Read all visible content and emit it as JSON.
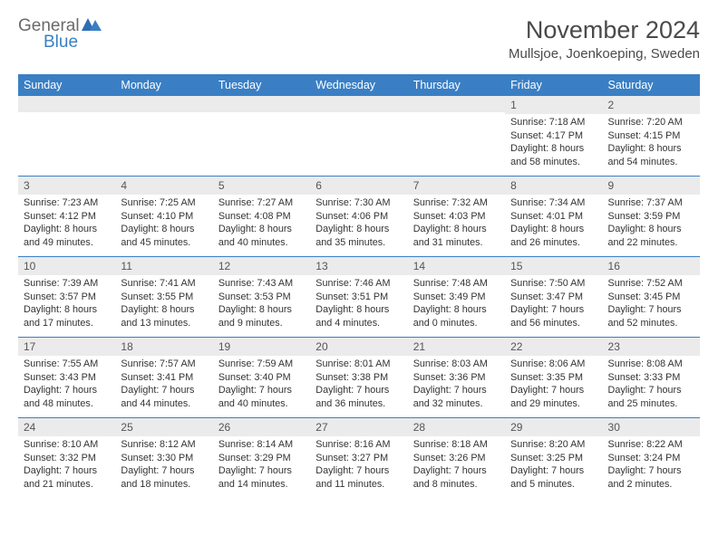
{
  "logo": {
    "text1": "General",
    "text2": "Blue"
  },
  "title": "November 2024",
  "location": "Mullsjoe, Joenkoeping, Sweden",
  "colors": {
    "brand": "#3a7fc4",
    "header_bg": "#3a7fc4",
    "header_text": "#ffffff",
    "daynum_bg": "#ebebeb",
    "border": "#3a7fc4",
    "body_text": "#333333"
  },
  "day_names": [
    "Sunday",
    "Monday",
    "Tuesday",
    "Wednesday",
    "Thursday",
    "Friday",
    "Saturday"
  ],
  "weeks": [
    [
      {
        "n": "",
        "sr": "",
        "ss": "",
        "dl": ""
      },
      {
        "n": "",
        "sr": "",
        "ss": "",
        "dl": ""
      },
      {
        "n": "",
        "sr": "",
        "ss": "",
        "dl": ""
      },
      {
        "n": "",
        "sr": "",
        "ss": "",
        "dl": ""
      },
      {
        "n": "",
        "sr": "",
        "ss": "",
        "dl": ""
      },
      {
        "n": "1",
        "sr": "Sunrise: 7:18 AM",
        "ss": "Sunset: 4:17 PM",
        "dl": "Daylight: 8 hours and 58 minutes."
      },
      {
        "n": "2",
        "sr": "Sunrise: 7:20 AM",
        "ss": "Sunset: 4:15 PM",
        "dl": "Daylight: 8 hours and 54 minutes."
      }
    ],
    [
      {
        "n": "3",
        "sr": "Sunrise: 7:23 AM",
        "ss": "Sunset: 4:12 PM",
        "dl": "Daylight: 8 hours and 49 minutes."
      },
      {
        "n": "4",
        "sr": "Sunrise: 7:25 AM",
        "ss": "Sunset: 4:10 PM",
        "dl": "Daylight: 8 hours and 45 minutes."
      },
      {
        "n": "5",
        "sr": "Sunrise: 7:27 AM",
        "ss": "Sunset: 4:08 PM",
        "dl": "Daylight: 8 hours and 40 minutes."
      },
      {
        "n": "6",
        "sr": "Sunrise: 7:30 AM",
        "ss": "Sunset: 4:06 PM",
        "dl": "Daylight: 8 hours and 35 minutes."
      },
      {
        "n": "7",
        "sr": "Sunrise: 7:32 AM",
        "ss": "Sunset: 4:03 PM",
        "dl": "Daylight: 8 hours and 31 minutes."
      },
      {
        "n": "8",
        "sr": "Sunrise: 7:34 AM",
        "ss": "Sunset: 4:01 PM",
        "dl": "Daylight: 8 hours and 26 minutes."
      },
      {
        "n": "9",
        "sr": "Sunrise: 7:37 AM",
        "ss": "Sunset: 3:59 PM",
        "dl": "Daylight: 8 hours and 22 minutes."
      }
    ],
    [
      {
        "n": "10",
        "sr": "Sunrise: 7:39 AM",
        "ss": "Sunset: 3:57 PM",
        "dl": "Daylight: 8 hours and 17 minutes."
      },
      {
        "n": "11",
        "sr": "Sunrise: 7:41 AM",
        "ss": "Sunset: 3:55 PM",
        "dl": "Daylight: 8 hours and 13 minutes."
      },
      {
        "n": "12",
        "sr": "Sunrise: 7:43 AM",
        "ss": "Sunset: 3:53 PM",
        "dl": "Daylight: 8 hours and 9 minutes."
      },
      {
        "n": "13",
        "sr": "Sunrise: 7:46 AM",
        "ss": "Sunset: 3:51 PM",
        "dl": "Daylight: 8 hours and 4 minutes."
      },
      {
        "n": "14",
        "sr": "Sunrise: 7:48 AM",
        "ss": "Sunset: 3:49 PM",
        "dl": "Daylight: 8 hours and 0 minutes."
      },
      {
        "n": "15",
        "sr": "Sunrise: 7:50 AM",
        "ss": "Sunset: 3:47 PM",
        "dl": "Daylight: 7 hours and 56 minutes."
      },
      {
        "n": "16",
        "sr": "Sunrise: 7:52 AM",
        "ss": "Sunset: 3:45 PM",
        "dl": "Daylight: 7 hours and 52 minutes."
      }
    ],
    [
      {
        "n": "17",
        "sr": "Sunrise: 7:55 AM",
        "ss": "Sunset: 3:43 PM",
        "dl": "Daylight: 7 hours and 48 minutes."
      },
      {
        "n": "18",
        "sr": "Sunrise: 7:57 AM",
        "ss": "Sunset: 3:41 PM",
        "dl": "Daylight: 7 hours and 44 minutes."
      },
      {
        "n": "19",
        "sr": "Sunrise: 7:59 AM",
        "ss": "Sunset: 3:40 PM",
        "dl": "Daylight: 7 hours and 40 minutes."
      },
      {
        "n": "20",
        "sr": "Sunrise: 8:01 AM",
        "ss": "Sunset: 3:38 PM",
        "dl": "Daylight: 7 hours and 36 minutes."
      },
      {
        "n": "21",
        "sr": "Sunrise: 8:03 AM",
        "ss": "Sunset: 3:36 PM",
        "dl": "Daylight: 7 hours and 32 minutes."
      },
      {
        "n": "22",
        "sr": "Sunrise: 8:06 AM",
        "ss": "Sunset: 3:35 PM",
        "dl": "Daylight: 7 hours and 29 minutes."
      },
      {
        "n": "23",
        "sr": "Sunrise: 8:08 AM",
        "ss": "Sunset: 3:33 PM",
        "dl": "Daylight: 7 hours and 25 minutes."
      }
    ],
    [
      {
        "n": "24",
        "sr": "Sunrise: 8:10 AM",
        "ss": "Sunset: 3:32 PM",
        "dl": "Daylight: 7 hours and 21 minutes."
      },
      {
        "n": "25",
        "sr": "Sunrise: 8:12 AM",
        "ss": "Sunset: 3:30 PM",
        "dl": "Daylight: 7 hours and 18 minutes."
      },
      {
        "n": "26",
        "sr": "Sunrise: 8:14 AM",
        "ss": "Sunset: 3:29 PM",
        "dl": "Daylight: 7 hours and 14 minutes."
      },
      {
        "n": "27",
        "sr": "Sunrise: 8:16 AM",
        "ss": "Sunset: 3:27 PM",
        "dl": "Daylight: 7 hours and 11 minutes."
      },
      {
        "n": "28",
        "sr": "Sunrise: 8:18 AM",
        "ss": "Sunset: 3:26 PM",
        "dl": "Daylight: 7 hours and 8 minutes."
      },
      {
        "n": "29",
        "sr": "Sunrise: 8:20 AM",
        "ss": "Sunset: 3:25 PM",
        "dl": "Daylight: 7 hours and 5 minutes."
      },
      {
        "n": "30",
        "sr": "Sunrise: 8:22 AM",
        "ss": "Sunset: 3:24 PM",
        "dl": "Daylight: 7 hours and 2 minutes."
      }
    ]
  ]
}
